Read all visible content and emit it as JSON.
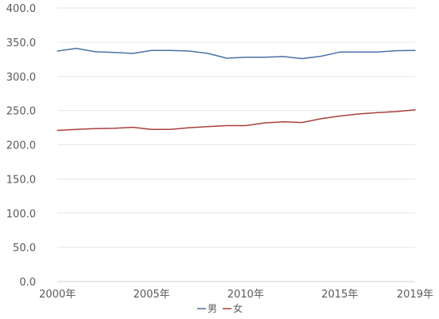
{
  "chart_data": {
    "type": "line",
    "title": "",
    "xlabel": "",
    "ylabel": "",
    "ylim": [
      0,
      400
    ],
    "yticks": [
      "0.0",
      "50.0",
      "100.0",
      "150.0",
      "200.0",
      "250.0",
      "300.0",
      "350.0",
      "400.0"
    ],
    "x": [
      "2000年",
      "2001年",
      "2002年",
      "2003年",
      "2004年",
      "2005年",
      "2006年",
      "2007年",
      "2008年",
      "2009年",
      "2010年",
      "2011年",
      "2012年",
      "2013年",
      "2014年",
      "2015年",
      "2016年",
      "2017年",
      "2018年",
      "2019年"
    ],
    "xtick_labels": [
      "2000年",
      "2005年",
      "2010年",
      "2015年",
      "2019年"
    ],
    "grid": true,
    "legend": "bottom",
    "series": [
      {
        "name": "男",
        "color": "#4a72a6",
        "values": [
          337.0,
          341.0,
          336.0,
          335.0,
          333.5,
          338.0,
          338.0,
          337.0,
          333.5,
          326.5,
          328.0,
          328.0,
          329.0,
          326.0,
          329.5,
          335.5,
          335.5,
          335.5,
          337.5,
          338.0
        ]
      },
      {
        "name": "女",
        "color": "#a9403a",
        "values": [
          221.0,
          222.5,
          223.5,
          224.0,
          225.5,
          222.5,
          222.5,
          225.0,
          226.5,
          228.0,
          228.0,
          232.0,
          233.5,
          232.5,
          238.0,
          242.0,
          245.0,
          247.0,
          248.5,
          251.0
        ]
      }
    ]
  }
}
